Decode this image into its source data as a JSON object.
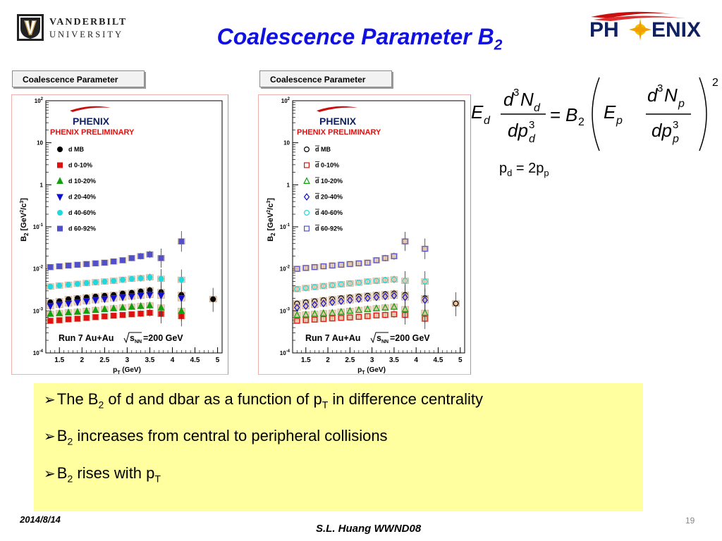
{
  "header": {
    "logo_left": {
      "line1": "VANDERBILT",
      "line2": "UNIVERSITY"
    },
    "title_main": "Coalescence Parameter B",
    "title_sub": "2",
    "logo_right": "PHENIX"
  },
  "panels": [
    {
      "tab_label": "Coalescence Parameter",
      "brand": "PHENIX",
      "preliminary": "PHENIX PRELIMINARY",
      "run_label": "Run 7 Au+Au",
      "energy_label": "=200 GeV",
      "energy_symbol": "s",
      "energy_sub": "NN",
      "legend": [
        {
          "label": "d MB",
          "marker": "filled-circle",
          "color": "#000000"
        },
        {
          "label": "d 0-10%",
          "marker": "filled-square",
          "color": "#e01010"
        },
        {
          "label": "d 10-20%",
          "marker": "filled-triangle-up",
          "color": "#10a010"
        },
        {
          "label": "d 20-40%",
          "marker": "filled-triangle-down",
          "color": "#1010d0"
        },
        {
          "label": "d 40-60%",
          "marker": "filled-circle",
          "color": "#20d8e0"
        },
        {
          "label": "d 60-92%",
          "marker": "filled-square",
          "color": "#5050c8"
        }
      ]
    },
    {
      "tab_label": "Coalescence Parameter",
      "brand": "PHENIX",
      "preliminary": "PHENIX PRELIMINARY",
      "run_label": "Run 7 Au+Au",
      "energy_label": "=200 GeV",
      "energy_symbol": "s",
      "energy_sub": "NN",
      "legend": [
        {
          "label": "d MB",
          "marker": "open-circle",
          "color": "#000000"
        },
        {
          "label": "d 0-10%",
          "marker": "open-square",
          "color": "#e01010"
        },
        {
          "label": "d 10-20%",
          "marker": "open-triangle-up",
          "color": "#10a010"
        },
        {
          "label": "d 20-40%",
          "marker": "open-diamond",
          "color": "#1010d0"
        },
        {
          "label": "d 40-60%",
          "marker": "open-circle",
          "color": "#20d8e0"
        },
        {
          "label": "d 60-92%",
          "marker": "open-square",
          "color": "#5050c8"
        }
      ]
    }
  ],
  "chart_data": [
    {
      "type": "scatter",
      "title": "",
      "xlabel": "p_T (GeV)",
      "ylabel": "B_2 [GeV^2/c^3]",
      "xlim": [
        1.2,
        5.1
      ],
      "ylim": [
        0.0001,
        100
      ],
      "yscale": "log",
      "x_ticks": [
        "1.5",
        "2",
        "2.5",
        "3",
        "3.5",
        "4",
        "4.5",
        "5"
      ],
      "y_ticks": [
        "10^-4",
        "10^-3",
        "10^-2",
        "10^-1",
        "1",
        "10",
        "10^2"
      ],
      "series": [
        {
          "name": "d MB",
          "x": [
            1.3,
            1.5,
            1.7,
            1.9,
            2.1,
            2.3,
            2.5,
            2.7,
            2.9,
            3.1,
            3.3,
            3.5,
            3.75,
            4.2
          ],
          "y": [
            0.0016,
            0.0017,
            0.0019,
            0.002,
            0.0021,
            0.0022,
            0.0023,
            0.0024,
            0.0026,
            0.0027,
            0.0029,
            0.0031,
            0.0028,
            0.0024
          ]
        },
        {
          "name": "d 0-10%",
          "x": [
            1.3,
            1.5,
            1.7,
            1.9,
            2.1,
            2.3,
            2.5,
            2.7,
            2.9,
            3.1,
            3.3,
            3.5,
            3.75,
            4.2
          ],
          "y": [
            0.00058,
            0.0006,
            0.00063,
            0.00065,
            0.00068,
            0.00071,
            0.00074,
            0.00077,
            0.0008,
            0.00083,
            0.00086,
            0.0009,
            0.00085,
            0.00075
          ]
        },
        {
          "name": "d 10-20%",
          "x": [
            1.3,
            1.5,
            1.7,
            1.9,
            2.1,
            2.3,
            2.5,
            2.7,
            2.9,
            3.1,
            3.3,
            3.5,
            3.75,
            4.2
          ],
          "y": [
            0.00085,
            0.00088,
            0.00092,
            0.00095,
            0.001,
            0.00105,
            0.0011,
            0.00115,
            0.0012,
            0.00125,
            0.0013,
            0.00135,
            0.0012,
            0.001
          ]
        },
        {
          "name": "d 20-40%",
          "x": [
            1.3,
            1.5,
            1.7,
            1.9,
            2.1,
            2.3,
            2.5,
            2.7,
            2.9,
            3.1,
            3.3,
            3.5,
            3.75,
            4.2
          ],
          "y": [
            0.0013,
            0.0014,
            0.0015,
            0.0016,
            0.0017,
            0.0018,
            0.0019,
            0.002,
            0.0021,
            0.0022,
            0.0023,
            0.0024,
            0.0023,
            0.002
          ]
        },
        {
          "name": "d 40-60%",
          "x": [
            1.3,
            1.5,
            1.7,
            1.9,
            2.1,
            2.3,
            2.5,
            2.7,
            2.9,
            3.1,
            3.3,
            3.5,
            3.75,
            4.2
          ],
          "y": [
            0.0038,
            0.004,
            0.0042,
            0.0044,
            0.0046,
            0.0048,
            0.005,
            0.0052,
            0.0055,
            0.0058,
            0.006,
            0.0063,
            0.0058,
            0.0055
          ]
        },
        {
          "name": "d 60-92%",
          "x": [
            1.3,
            1.5,
            1.7,
            1.9,
            2.1,
            2.3,
            2.5,
            2.7,
            2.9,
            3.1,
            3.3,
            3.5,
            3.75,
            4.2
          ],
          "y": [
            0.011,
            0.0115,
            0.012,
            0.0125,
            0.013,
            0.0135,
            0.014,
            0.015,
            0.016,
            0.018,
            0.02,
            0.022,
            0.018,
            0.045
          ]
        }
      ],
      "extra_points": [
        {
          "x": 4.9,
          "y": 0.0019
        }
      ]
    },
    {
      "type": "scatter",
      "title": "",
      "xlabel": "p_T (GeV)",
      "ylabel": "B_2 [GeV^2/c^3]",
      "xlim": [
        1.2,
        5.1
      ],
      "ylim": [
        0.0001,
        100
      ],
      "yscale": "log",
      "x_ticks": [
        "1.5",
        "2",
        "2.5",
        "3",
        "3.5",
        "4",
        "4.5",
        "5"
      ],
      "y_ticks": [
        "10^-4",
        "10^-3",
        "10^-2",
        "10^-1",
        "1",
        "10",
        "10^2"
      ],
      "series": [
        {
          "name": "d MB",
          "x": [
            1.3,
            1.5,
            1.7,
            1.9,
            2.1,
            2.3,
            2.5,
            2.7,
            2.9,
            3.1,
            3.3,
            3.5,
            3.75,
            4.2
          ],
          "y": [
            0.0015,
            0.0016,
            0.0017,
            0.0018,
            0.0019,
            0.002,
            0.0021,
            0.0022,
            0.0023,
            0.0024,
            0.0025,
            0.0026,
            0.0024,
            0.002
          ]
        },
        {
          "name": "d 0-10%",
          "x": [
            1.3,
            1.5,
            1.7,
            1.9,
            2.1,
            2.3,
            2.5,
            2.7,
            2.9,
            3.1,
            3.3,
            3.5,
            3.75,
            4.2
          ],
          "y": [
            0.00058,
            0.0006,
            0.00062,
            0.00064,
            0.00066,
            0.00068,
            0.0007,
            0.00072,
            0.00075,
            0.00078,
            0.0008,
            0.00083,
            0.0008,
            0.00065
          ]
        },
        {
          "name": "d 10-20%",
          "x": [
            1.3,
            1.5,
            1.7,
            1.9,
            2.1,
            2.3,
            2.5,
            2.7,
            2.9,
            3.1,
            3.3,
            3.5,
            3.75,
            4.2
          ],
          "y": [
            0.0008,
            0.00082,
            0.00085,
            0.00088,
            0.0009,
            0.00095,
            0.001,
            0.00105,
            0.0011,
            0.00115,
            0.0012,
            0.00125,
            0.0011,
            0.0009
          ]
        },
        {
          "name": "d 20-40%",
          "x": [
            1.3,
            1.5,
            1.7,
            1.9,
            2.1,
            2.3,
            2.5,
            2.7,
            2.9,
            3.1,
            3.3,
            3.5,
            3.75,
            4.2
          ],
          "y": [
            0.0012,
            0.0013,
            0.0014,
            0.0015,
            0.0016,
            0.0017,
            0.0018,
            0.0019,
            0.002,
            0.0021,
            0.0022,
            0.0023,
            0.0021,
            0.0018
          ]
        },
        {
          "name": "d 40-60%",
          "x": [
            1.3,
            1.5,
            1.7,
            1.9,
            2.1,
            2.3,
            2.5,
            2.7,
            2.9,
            3.1,
            3.3,
            3.5,
            3.75,
            4.2
          ],
          "y": [
            0.0033,
            0.0035,
            0.0037,
            0.0039,
            0.0041,
            0.0043,
            0.0045,
            0.0047,
            0.005,
            0.0052,
            0.0054,
            0.0056,
            0.0052,
            0.005
          ]
        },
        {
          "name": "d 60-92%",
          "x": [
            1.3,
            1.5,
            1.7,
            1.9,
            2.1,
            2.3,
            2.5,
            2.7,
            2.9,
            3.1,
            3.3,
            3.5,
            3.75,
            4.2
          ],
          "y": [
            0.01,
            0.0105,
            0.011,
            0.0115,
            0.012,
            0.0125,
            0.013,
            0.0135,
            0.014,
            0.016,
            0.018,
            0.02,
            0.045,
            0.03
          ]
        }
      ],
      "extra_points": [
        {
          "x": 4.9,
          "y": 0.0015
        }
      ]
    }
  ],
  "formula": {
    "lhs_E": "E",
    "lhs_E_sub": "d",
    "lhs_num": "d",
    "lhs_num_sup": "3",
    "lhs_num_N": "N",
    "lhs_num_N_sub": "d",
    "lhs_den": "dp",
    "lhs_den_sup": "3",
    "lhs_den_sub": "d",
    "equals": "=",
    "B": "B",
    "B_sub": "2",
    "rhs_E": "E",
    "rhs_E_sub": "p",
    "rhs_num": "d",
    "rhs_num_sup": "3",
    "rhs_num_N": "N",
    "rhs_num_N_sub": "p",
    "rhs_den": "dp",
    "rhs_den_sup": "3",
    "rhs_den_sub": "p",
    "power": "2"
  },
  "relation": {
    "lhs": "p",
    "lhs_sub": "d",
    "eq": " = 2p",
    "rhs_sub": "p"
  },
  "bullets": [
    {
      "pre": "The B",
      "sub1": "2",
      "mid": " of d and dbar as a function of p",
      "sub2": "T",
      "post": " in difference centrality"
    },
    {
      "pre": "B",
      "sub1": "2",
      "mid": " increases from central to peripheral collisions",
      "sub2": "",
      "post": ""
    },
    {
      "pre": "B",
      "sub1": "2",
      "mid": " rises with p",
      "sub2": "T",
      "post": ""
    }
  ],
  "footer": {
    "date": "2014/8/14",
    "author": "S.L. Huang WWND08",
    "page": "19"
  },
  "colors": {
    "title": "#1010e0",
    "summary_bg": "#ffffa0",
    "preliminary": "#e01010"
  }
}
